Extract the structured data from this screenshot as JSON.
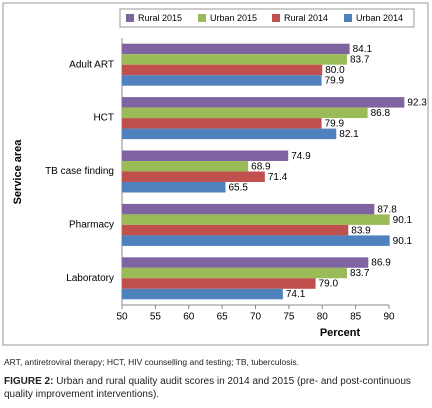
{
  "chart_data": {
    "type": "hbar",
    "x_label": "Percent",
    "y_label": "Service area",
    "categories": [
      "Adult ART",
      "HCT",
      "TB case finding",
      "Pharmacy",
      "Laboratory"
    ],
    "series": [
      {
        "name": "Rural 2015",
        "color": "#8064a2",
        "values": [
          84.1,
          92.3,
          74.9,
          87.8,
          86.9
        ],
        "value_labels": [
          "84.1",
          "92.3",
          "74.9",
          "87.8",
          "86.9"
        ]
      },
      {
        "name": "Urban 2015",
        "color": "#9bbb59",
        "values": [
          83.7,
          86.8,
          68.9,
          90.1,
          83.7
        ],
        "value_labels": [
          "83.7",
          "86.8",
          "68.9",
          "90.1",
          "83.7"
        ]
      },
      {
        "name": "Rural 2014",
        "color": "#c0504d",
        "values": [
          80.0,
          79.9,
          71.4,
          83.9,
          79.0
        ],
        "value_labels": [
          "80.0",
          "79.9",
          "71.4",
          "83.9",
          "79.0"
        ]
      },
      {
        "name": "Urban 2014",
        "color": "#4f81bd",
        "values": [
          79.9,
          82.1,
          65.5,
          90.1,
          74.1
        ],
        "value_labels": [
          "79.9",
          "82.1",
          "65.5",
          "90.1",
          "74.1"
        ]
      }
    ],
    "xlim": [
      50,
      90
    ],
    "xticks": [
      50,
      55,
      60,
      65,
      70,
      75,
      80,
      85,
      90
    ],
    "grid": false,
    "legend": "top"
  },
  "caption": {
    "abbreviations": "ART, antiretroviral therapy; HCT, HIV counselling and testing; TB, tuberculosis.",
    "figure_label": "FIGURE 2:",
    "figure_text": "Urban and rural quality audit scores in 2014 and 2015 (pre- and post-continuous quality improvement interventions)."
  }
}
